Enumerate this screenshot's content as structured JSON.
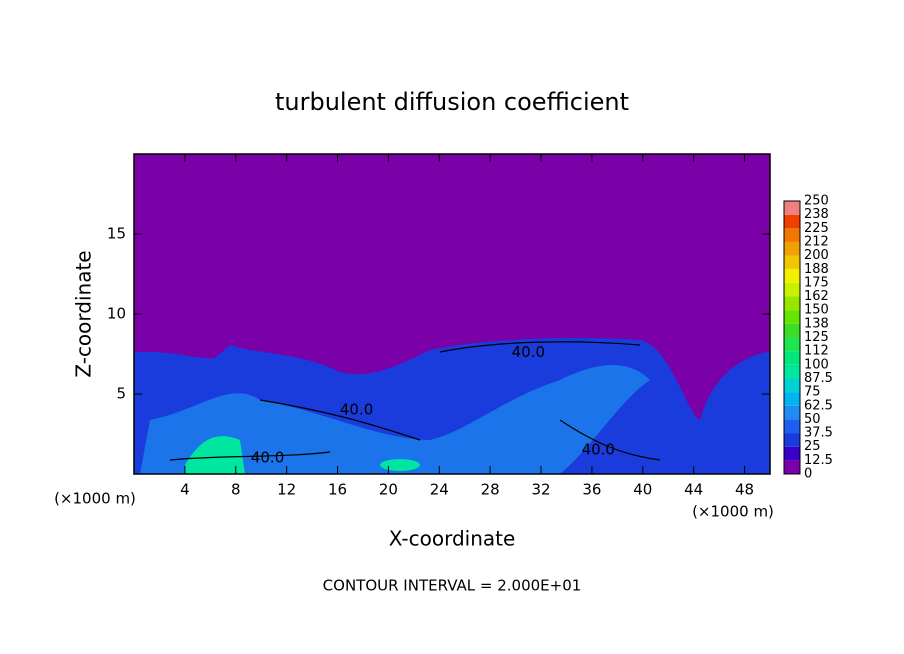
{
  "chart_data": {
    "type": "contour",
    "title": "turbulent diffusion coefficient",
    "x_label": "X-coordinate",
    "y_label": "Z-coordinate",
    "x_unit_label": "(×1000 m)",
    "y_unit_label": "(×1000 m)",
    "footer": "CONTOUR INTERVAL = 2.000E+01",
    "xlim": [
      0,
      50
    ],
    "xticks": [
      4,
      8,
      12,
      16,
      20,
      24,
      28,
      32,
      36,
      40,
      44,
      48
    ],
    "ylim": [
      0,
      20
    ],
    "yticks": [
      5,
      10,
      15
    ],
    "colorbar": {
      "levels": [
        0,
        12.5,
        25,
        37.5,
        50,
        62.5,
        75,
        87.5,
        100,
        {
          "value": 112.5,
          "label": "112"
        },
        125,
        {
          "value": 137.5,
          "label": "138"
        },
        150,
        {
          "value": 162.5,
          "label": "162"
        },
        175,
        {
          "value": 187.5,
          "label": "188"
        },
        200,
        {
          "value": 212.5,
          "label": "212"
        },
        225,
        {
          "value": 237.5,
          "label": "238"
        },
        250
      ],
      "colors": [
        "#7a00a8",
        "#3a00c8",
        "#1a3cdc",
        "#1e5ef0",
        "#1e8cf0",
        "#00b4f0",
        "#00d2d2",
        "#00e6a0",
        "#00e678",
        "#1ee650",
        "#3cdc28",
        "#64e600",
        "#96e600",
        "#c8f000",
        "#f0f000",
        "#f0c800",
        "#f0a000",
        "#f07800",
        "#f04000",
        "#f08080"
      ]
    },
    "contour_labels": [
      {
        "text": "40.0",
        "x": 31,
        "y": 7.6
      },
      {
        "text": "40.0",
        "x": 17.5,
        "y": 4
      },
      {
        "text": "40.0",
        "x": 10.5,
        "y": 1
      },
      {
        "text": "40.0",
        "x": 36.5,
        "y": 1.5
      }
    ]
  }
}
